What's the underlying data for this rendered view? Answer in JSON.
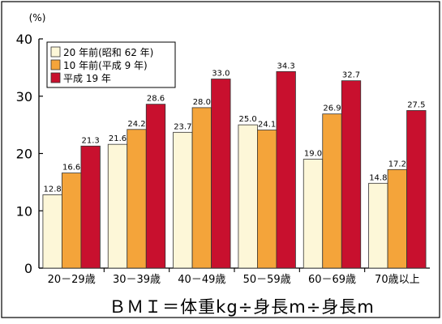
{
  "chart_data": {
    "type": "bar",
    "title": "",
    "xlabel": "",
    "ylabel": "(%)",
    "ylim": [
      0,
      40
    ],
    "yticks": [
      0,
      10,
      20,
      30,
      40
    ],
    "grid": false,
    "legend_position": "top-left",
    "categories": [
      "20－29歳",
      "30－39歳",
      "40－49歳",
      "50－59歳",
      "60－69歳",
      "70歳以上"
    ],
    "series": [
      {
        "name": "20 年前(昭和 62 年)",
        "values": [
          12.8,
          21.6,
          23.7,
          25.0,
          19.0,
          14.8
        ],
        "value_labels": [
          "12.8",
          "21.6",
          "23.7",
          "25.0",
          "19.0",
          "14.8"
        ],
        "color": "#fdf7d8"
      },
      {
        "name": "10 年前(平成 9 年)",
        "values": [
          16.6,
          24.2,
          28.0,
          24.1,
          26.9,
          17.2
        ],
        "value_labels": [
          "16.6",
          "24.2",
          "28.0",
          "24.1",
          "26.9",
          "17.2"
        ],
        "color": "#f4a43a"
      },
      {
        "name": "平成 19 年",
        "values": [
          21.3,
          28.6,
          33.0,
          34.3,
          32.7,
          27.5
        ],
        "value_labels": [
          "21.3",
          "28.6",
          "33.0",
          "34.3",
          "32.7",
          "27.5"
        ],
        "color": "#c8102e"
      }
    ],
    "annotation": "ＢＭＩ＝体重kg÷身長m÷身長m",
    "colors": {
      "frame": "#000000",
      "bar_stroke": "#333333"
    }
  }
}
